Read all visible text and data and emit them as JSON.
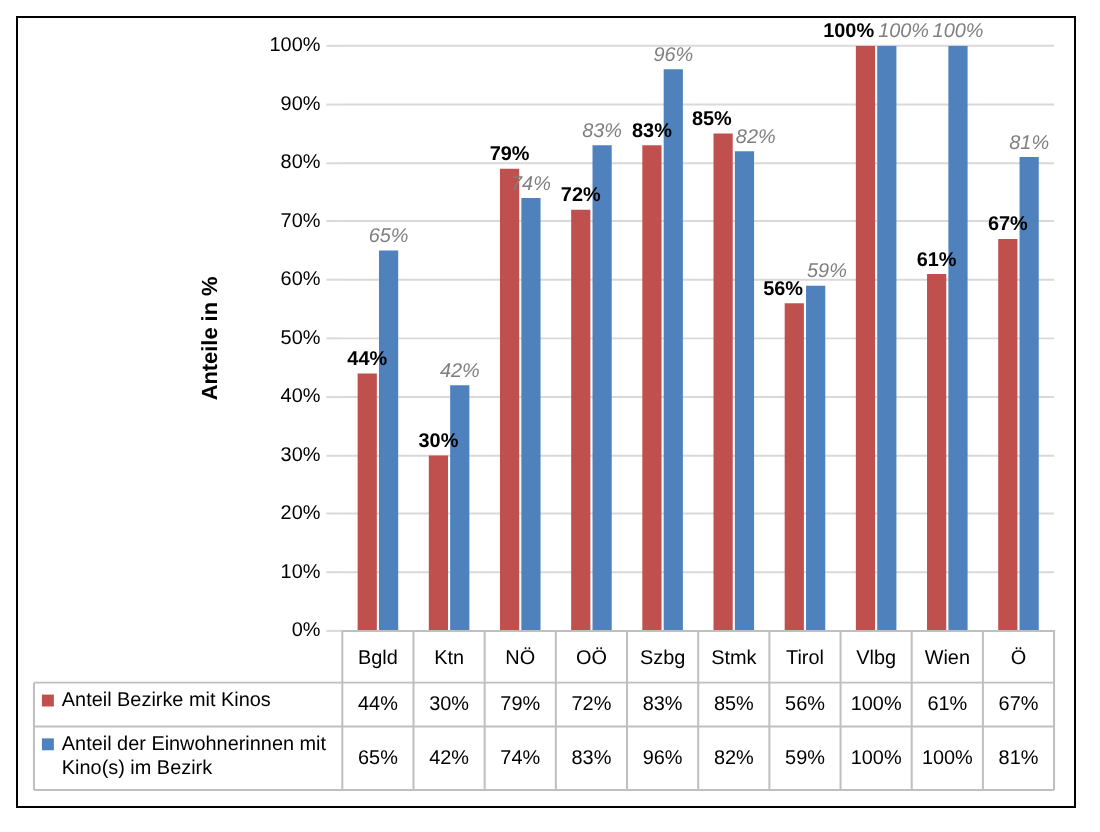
{
  "chart_data": {
    "type": "bar",
    "ylabel": "Anteile in %",
    "categories": [
      "Bgld",
      "Ktn",
      "NÖ",
      "OÖ",
      "Szbg",
      "Stmk",
      "Tirol",
      "Vlbg",
      "Wien",
      "Ö"
    ],
    "series": [
      {
        "name": "Anteil Bezirke mit Kinos",
        "color": "#c0504d",
        "values": [
          44,
          30,
          79,
          72,
          83,
          85,
          56,
          100,
          61,
          67
        ],
        "value_labels": [
          "44%",
          "30%",
          "79%",
          "72%",
          "83%",
          "85%",
          "56%",
          "100%",
          "61%",
          "67%"
        ]
      },
      {
        "name": "Anteil der Einwohnerinnen mit Kino(s) im Bezirk",
        "color": "#4f81bd",
        "values": [
          65,
          42,
          74,
          83,
          96,
          82,
          59,
          100,
          100,
          81
        ],
        "value_labels": [
          "65%",
          "42%",
          "74%",
          "83%",
          "96%",
          "82%",
          "59%",
          "100%",
          "100%",
          "81%"
        ]
      }
    ],
    "ylim": [
      0,
      100
    ],
    "yticks": [
      {
        "value": 0,
        "label": "0%"
      },
      {
        "value": 10,
        "label": "10%"
      },
      {
        "value": 20,
        "label": "20%"
      },
      {
        "value": 30,
        "label": "30%"
      },
      {
        "value": 40,
        "label": "40%"
      },
      {
        "value": 50,
        "label": "50%"
      },
      {
        "value": 60,
        "label": "60%"
      },
      {
        "value": 70,
        "label": "70%"
      },
      {
        "value": 80,
        "label": "80%"
      },
      {
        "value": 90,
        "label": "90%"
      },
      {
        "value": 100,
        "label": "100%"
      }
    ],
    "grid": "y",
    "legend": "bottom"
  }
}
